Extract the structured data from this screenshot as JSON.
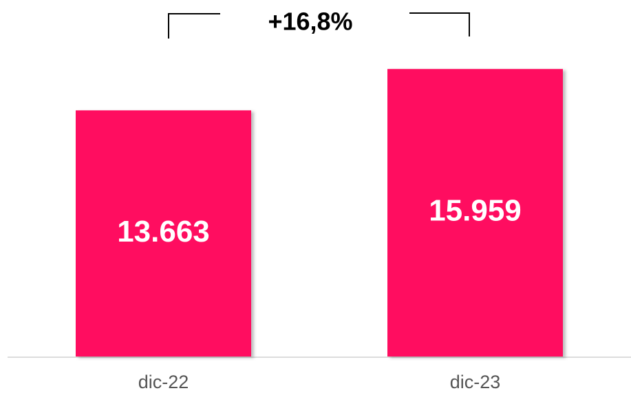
{
  "chart_data": {
    "type": "bar",
    "annotation": "+16,8%",
    "categories": [
      "dic-22",
      "dic-23"
    ],
    "values": [
      13663,
      15959
    ],
    "value_labels": [
      "13.663",
      "15.959"
    ],
    "color": "#ff1060",
    "ylim": [
      0,
      17000
    ]
  }
}
